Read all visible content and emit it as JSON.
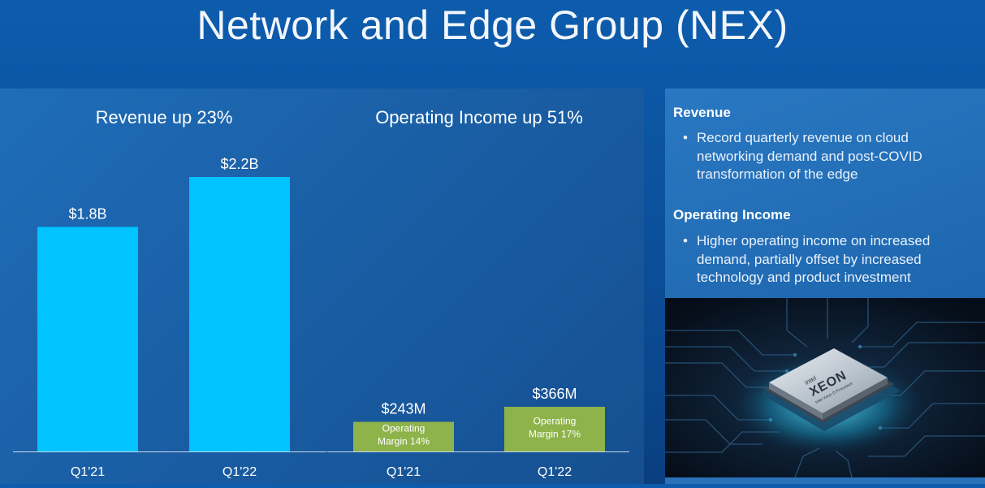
{
  "title": "Network and Edge Group (NEX)",
  "chart_data": [
    {
      "type": "bar",
      "title": "Revenue up 23%",
      "categories": [
        "Q1'21",
        "Q1'22"
      ],
      "values": [
        1.8,
        2.2
      ],
      "value_labels": [
        "$1.8B",
        "$2.2B"
      ],
      "unit": "$B",
      "ylim": [
        0,
        2.2
      ],
      "color": "#00c3ff",
      "legend": "none",
      "grid": false
    },
    {
      "type": "bar",
      "title": "Operating Income up 51%",
      "categories": [
        "Q1'21",
        "Q1'22"
      ],
      "values": [
        243,
        366
      ],
      "value_labels": [
        "$243M",
        "$366M"
      ],
      "inner_labels": [
        [
          "Operating",
          "Margin 14%"
        ],
        [
          "Operating",
          "Margin 17%"
        ]
      ],
      "unit": "$M",
      "color": "#8db34a",
      "legend": "none",
      "grid": false
    }
  ],
  "sidebar": {
    "revenue_heading": "Revenue",
    "revenue_bullet": "Record quarterly revenue on cloud networking demand and post-COVID transformation of the edge",
    "income_heading": "Operating Income",
    "income_bullet": "Higher operating income on increased demand, partially offset by increased technology and product investment",
    "bullet_glyph": "•"
  },
  "photo": {
    "brand": "intel",
    "product": "XEON",
    "subtitle": "Intel Xeon D Processor"
  }
}
